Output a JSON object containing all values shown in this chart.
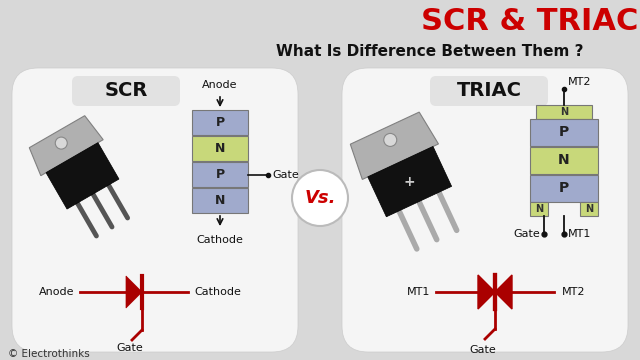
{
  "bg_color": "#d8d8d8",
  "title": "SCR & TRIAC",
  "subtitle": "What Is Difference Between Them ?",
  "title_color": "#cc0000",
  "subtitle_color": "#111111",
  "vs_text": "Vs.",
  "vs_color": "#cc0000",
  "copyright": "© Electrothinks",
  "panel_color": "#f5f5f5",
  "scr_label": "SCR",
  "triac_label": "TRIAC",
  "scr_layers": [
    "P",
    "N",
    "P",
    "N"
  ],
  "layer_colors_scr": [
    "#a0aacc",
    "#c8d87a",
    "#a0aacc",
    "#a0aacc"
  ],
  "layer_colors_triac_main": [
    "#a0aacc",
    "#c8d87a",
    "#a0aacc"
  ],
  "scr_top_label": "Anode",
  "scr_bottom_label": "Cathode",
  "scr_gate_label": "Gate",
  "triac_top_label": "MT2",
  "triac_gate_label": "Gate",
  "triac_mt1_label": "MT1",
  "triac_bottom_left": "MT1",
  "triac_bottom_right": "MT2",
  "triac_gate_bottom": "Gate",
  "scr_sym_anode": "Anode",
  "scr_sym_cathode": "Cathode",
  "scr_sym_gate": "Gate",
  "diode_color": "#aa0000",
  "lead_color": "#555555",
  "line_color": "#111111",
  "body_color": "#1a1a1a",
  "tab_color": "#999999",
  "n_small_color": "#c8d87a",
  "label_box_color": "#e2e2e2"
}
